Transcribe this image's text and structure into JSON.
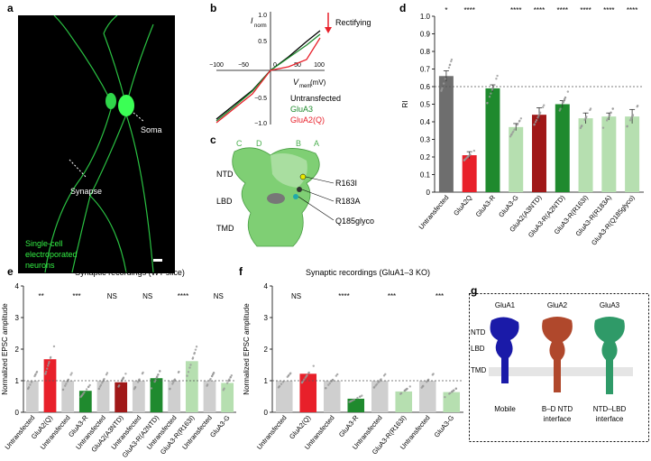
{
  "panel_labels": {
    "a": "a",
    "b": "b",
    "c": "c",
    "d": "d",
    "e": "e",
    "f": "f",
    "g": "g"
  },
  "colors": {
    "gray": "#6e6e6e",
    "red": "#e8202a",
    "darkred": "#a01818",
    "green": "#1f8a2e",
    "lightgreen": "#b6dfb0",
    "lightgray": "#cfcfcf",
    "neuron": "#33ee44",
    "blue": "#1a1aa8",
    "brick": "#b0482c",
    "teal": "#2f9a68"
  },
  "panel_a": {
    "soma": "Soma",
    "synapse": "Synapse",
    "caption_line1": "Single-cell",
    "caption_line2": "electroporated",
    "caption_line3": "neurons"
  },
  "panel_b": {
    "ylabel_main": "I",
    "ylabel_sub": "norm",
    "xlabel_main": "V",
    "xlabel_sub": "mem",
    "xlabel_unit": "(mV)",
    "rectifying": "Rectifying",
    "xticks": [
      "−100",
      "−50",
      "0",
      "50",
      "100"
    ],
    "yticks": [
      "−1.0",
      "−0.5",
      "0",
      "0.5",
      "1.0"
    ],
    "legend": [
      "Untransfected",
      "GluA3",
      "GluA2(Q)"
    ]
  },
  "panel_c": {
    "subunits": [
      "C",
      "D",
      "B",
      "A"
    ],
    "domains": [
      "NTD",
      "LBD",
      "TMD"
    ],
    "sites": [
      "R163I",
      "R183A",
      "Q185glyco"
    ]
  },
  "panel_g": {
    "titles": [
      "GluA1",
      "GluA2",
      "GluA3"
    ],
    "domains": [
      "NTD",
      "LBD",
      "TMD"
    ],
    "captions": [
      "Mobile",
      "B–D NTD",
      "interface",
      "NTD–LBD",
      "interface"
    ]
  },
  "chart_data": [
    {
      "panel": "d",
      "type": "bar",
      "ylabel": "RI",
      "ylim": [
        0,
        1.0
      ],
      "yticks": [
        "0",
        "0.1",
        "0.2",
        "0.3",
        "0.4",
        "0.5",
        "0.6",
        "0.7",
        "0.8",
        "0.9",
        "1.0"
      ],
      "reference_line": 0.6,
      "categories": [
        "Untransfected",
        "GluA2Q",
        "GluA3-R",
        "GluA3-G",
        "GluA2(A3NTD)",
        "GluA3-R(A2NTD)",
        "GluA3-R(R163I)",
        "GluA3-R(R183A)",
        "GluA3-R(Q185glyco)"
      ],
      "values": [
        0.66,
        0.21,
        0.59,
        0.37,
        0.44,
        0.5,
        0.42,
        0.43,
        0.43
      ],
      "errors": [
        0.03,
        0.02,
        0.02,
        0.02,
        0.04,
        0.02,
        0.03,
        0.02,
        0.04
      ],
      "bar_colors": [
        "#6e6e6e",
        "#e8202a",
        "#1f8a2e",
        "#b6dfb0",
        "#a01818",
        "#1f8a2e",
        "#b6dfb0",
        "#b6dfb0",
        "#b6dfb0"
      ],
      "significance": [
        "*",
        "****",
        "",
        "****",
        "****",
        "****",
        "****",
        "****",
        "****"
      ]
    },
    {
      "panel": "e",
      "type": "bar",
      "title": "Synaptic recordings (WT slice)",
      "ylabel": "Normalized EPSC amplitude",
      "ylim": [
        0,
        4
      ],
      "yticks": [
        "0",
        "1",
        "2",
        "3",
        "4"
      ],
      "reference_line": 1.0,
      "categories": [
        "Untransfected",
        "GluA2(Q)",
        "Untransfected",
        "GluA3-R",
        "Untransfected",
        "GluA2(A3NTD)",
        "Untransfected",
        "GluA3-R(A2NTD)",
        "Untransfected",
        "GluA3-R(R163I)",
        "Untransfected",
        "GluA3-G"
      ],
      "values": [
        1.0,
        1.68,
        1.0,
        0.68,
        1.0,
        0.95,
        1.0,
        1.08,
        1.0,
        1.62,
        1.0,
        0.93
      ],
      "bar_colors": [
        "#cfcfcf",
        "#e8202a",
        "#cfcfcf",
        "#1f8a2e",
        "#cfcfcf",
        "#a01818",
        "#cfcfcf",
        "#1f8a2e",
        "#cfcfcf",
        "#b6dfb0",
        "#cfcfcf",
        "#b6dfb0"
      ],
      "significance": [
        "**",
        "***",
        "NS",
        "NS",
        "****",
        "NS"
      ]
    },
    {
      "panel": "f",
      "type": "bar",
      "title": "Synaptic recordings (GluA1–3 KO)",
      "ylabel": "Normalized EPSC amplitude",
      "ylim": [
        0,
        4
      ],
      "yticks": [
        "0",
        "1",
        "2",
        "3",
        "4"
      ],
      "reference_line": 1.0,
      "categories": [
        "Untransfected",
        "GluA2(Q)",
        "Untransfected",
        "GluA3-R",
        "Untransfected",
        "GluA3-R(R163I)",
        "Untransfected",
        "GluA3-G"
      ],
      "values": [
        1.0,
        1.22,
        1.0,
        0.43,
        1.0,
        0.66,
        1.0,
        0.64
      ],
      "bar_colors": [
        "#cfcfcf",
        "#e8202a",
        "#cfcfcf",
        "#1f8a2e",
        "#cfcfcf",
        "#b6dfb0",
        "#cfcfcf",
        "#b6dfb0"
      ],
      "significance": [
        "NS",
        "****",
        "***",
        "***"
      ]
    }
  ]
}
